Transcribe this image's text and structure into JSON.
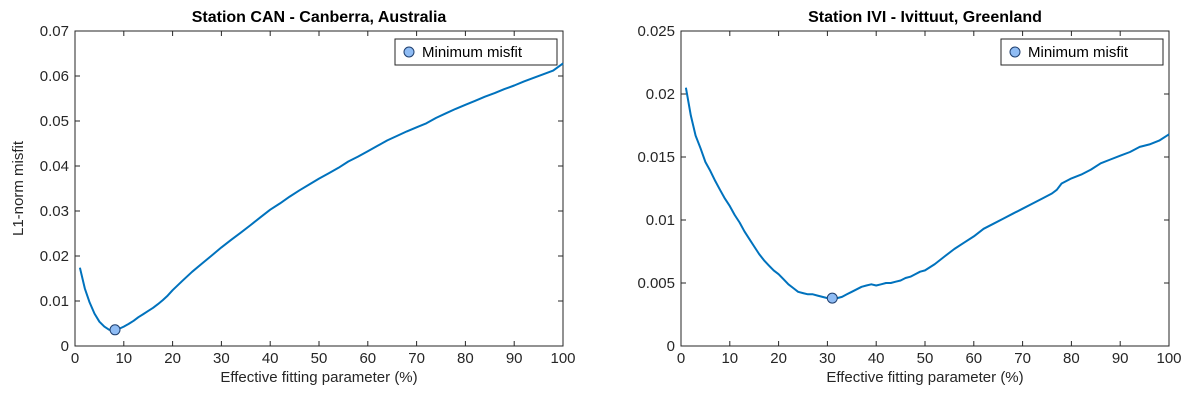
{
  "chart_data": [
    {
      "type": "line",
      "title": "Station CAN - Canberra, Australia",
      "xlabel": "Effective fitting parameter (%)",
      "ylabel": "L1-norm misfit",
      "xlim": [
        0,
        100
      ],
      "ylim": [
        0,
        0.07
      ],
      "xticks": [
        0,
        10,
        20,
        30,
        40,
        50,
        60,
        70,
        80,
        90,
        100
      ],
      "xtick_labels": [
        "0",
        "10",
        "20",
        "30",
        "40",
        "50",
        "60",
        "70",
        "80",
        "90",
        "100"
      ],
      "yticks": [
        0,
        0.01,
        0.02,
        0.03,
        0.04,
        0.05,
        0.06,
        0.07
      ],
      "ytick_labels": [
        "0",
        "0.01",
        "0.02",
        "0.03",
        "0.04",
        "0.05",
        "0.06",
        "0.07"
      ],
      "legend": {
        "entries": [
          "Minimum misfit"
        ],
        "placement": "top-right"
      },
      "series": [
        {
          "x": [
            1,
            2,
            3,
            4,
            5,
            6,
            7,
            8,
            9,
            10,
            11,
            12,
            13,
            14,
            15,
            16,
            17,
            18,
            19,
            20,
            22,
            24,
            26,
            28,
            30,
            32,
            34,
            36,
            38,
            40,
            42,
            44,
            46,
            48,
            50,
            52,
            54,
            56,
            58,
            60,
            62,
            64,
            66,
            68,
            70,
            72,
            74,
            76,
            78,
            80,
            82,
            84,
            86,
            88,
            90,
            92,
            94,
            96,
            98,
            100
          ],
          "y": [
            0.0174,
            0.0128,
            0.0097,
            0.0072,
            0.0054,
            0.0043,
            0.0036,
            0.0035,
            0.0038,
            0.0043,
            0.0049,
            0.0056,
            0.0064,
            0.0071,
            0.0078,
            0.0085,
            0.0093,
            0.0102,
            0.0112,
            0.0124,
            0.0145,
            0.0165,
            0.0183,
            0.0201,
            0.0219,
            0.0236,
            0.0252,
            0.0269,
            0.0286,
            0.0303,
            0.0317,
            0.0332,
            0.0346,
            0.0359,
            0.0372,
            0.0384,
            0.0396,
            0.041,
            0.0421,
            0.0433,
            0.0445,
            0.0457,
            0.0467,
            0.0477,
            0.0486,
            0.0495,
            0.0507,
            0.0517,
            0.0527,
            0.0536,
            0.0545,
            0.0554,
            0.0562,
            0.0571,
            0.0579,
            0.0588,
            0.0596,
            0.0604,
            0.0612,
            0.0628
          ]
        }
      ],
      "minimum": {
        "x": 8.2,
        "y": 0.0036
      }
    },
    {
      "type": "line",
      "title": "Station IVI - Ivittuut, Greenland",
      "xlabel": "Effective fitting parameter (%)",
      "ylabel": "",
      "xlim": [
        0,
        100
      ],
      "ylim": [
        0,
        0.025
      ],
      "xticks": [
        0,
        10,
        20,
        30,
        40,
        50,
        60,
        70,
        80,
        90,
        100
      ],
      "xtick_labels": [
        "0",
        "10",
        "20",
        "30",
        "40",
        "50",
        "60",
        "70",
        "80",
        "90",
        "100"
      ],
      "yticks": [
        0,
        0.005,
        0.01,
        0.015,
        0.02,
        0.025
      ],
      "ytick_labels": [
        "0",
        "0.005",
        "0.01",
        "0.015",
        "0.02",
        "0.025"
      ],
      "legend": {
        "entries": [
          "Minimum misfit"
        ],
        "placement": "top-right"
      },
      "series": [
        {
          "x": [
            1,
            2,
            3,
            4,
            5,
            6,
            7,
            8,
            9,
            10,
            11,
            12,
            13,
            14,
            15,
            16,
            17,
            18,
            19,
            20,
            21,
            22,
            23,
            24,
            25,
            26,
            27,
            28,
            29,
            30,
            31,
            32,
            33,
            34,
            35,
            36,
            37,
            38,
            39,
            40,
            41,
            42,
            43,
            44,
            45,
            46,
            47,
            48,
            49,
            50,
            52,
            54,
            56,
            58,
            60,
            62,
            64,
            66,
            68,
            70,
            72,
            74,
            76,
            77,
            78,
            80,
            82,
            84,
            86,
            88,
            90,
            92,
            94,
            96,
            98,
            100
          ],
          "y": [
            0.0205,
            0.0183,
            0.0167,
            0.0157,
            0.0146,
            0.0139,
            0.0131,
            0.0124,
            0.0117,
            0.0111,
            0.0104,
            0.0098,
            0.0091,
            0.0085,
            0.0079,
            0.0073,
            0.0068,
            0.0064,
            0.006,
            0.0057,
            0.0053,
            0.0049,
            0.0046,
            0.0043,
            0.0042,
            0.0041,
            0.0041,
            0.004,
            0.0039,
            0.0038,
            0.0038,
            0.0038,
            0.0039,
            0.0041,
            0.0043,
            0.0045,
            0.0047,
            0.0048,
            0.0049,
            0.0048,
            0.0049,
            0.005,
            0.005,
            0.0051,
            0.0052,
            0.0054,
            0.0055,
            0.0057,
            0.0059,
            0.006,
            0.0065,
            0.0071,
            0.0077,
            0.0082,
            0.0087,
            0.0093,
            0.0097,
            0.0101,
            0.0105,
            0.0109,
            0.0113,
            0.0117,
            0.0121,
            0.0124,
            0.0129,
            0.0133,
            0.0136,
            0.014,
            0.0145,
            0.0148,
            0.0151,
            0.0154,
            0.0158,
            0.016,
            0.0163,
            0.0168
          ]
        }
      ],
      "minimum": {
        "x": 31,
        "y": 0.0038
      }
    }
  ]
}
